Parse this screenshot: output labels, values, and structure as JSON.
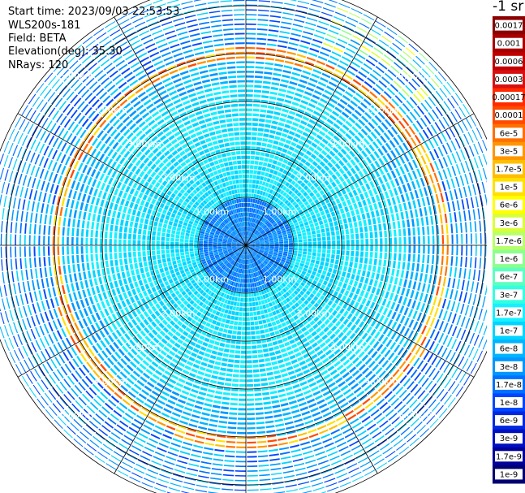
{
  "header": {
    "start_time": "Start time: 2023/09/03 22:53:53",
    "instrument": "WLS200s-181",
    "field": "Field: BETA",
    "elevation": "Elevation(deg): 35.30",
    "nrays": "NRays: 120"
  },
  "unit_label": "-1 sr",
  "chart_data": {
    "type": "heatmap",
    "projection": "polar-ppi",
    "rays": 120,
    "max_range_km": 5.5,
    "ring_ranges_km": [
      1.0,
      2.0,
      3.0,
      4.0,
      5.0
    ],
    "ring_labels": [
      "1.00km",
      "2.00km",
      "3.00km",
      "4.00km",
      "5.00km"
    ],
    "radial_line_step_deg": 30,
    "field": "BETA",
    "elevation_deg": 35.3,
    "colorbar": {
      "labels": [
        "0.0017",
        "0.001",
        "0.0006",
        "0.0003",
        "0.00017",
        "0.0001",
        "6e-5",
        "3e-5",
        "1.7e-5",
        "1e-5",
        "6e-6",
        "3e-6",
        "1.7e-6",
        "1e-6",
        "6e-7",
        "3e-7",
        "1.7e-7",
        "1e-7",
        "6e-8",
        "3e-8",
        "1.7e-8",
        "1e-8",
        "6e-9",
        "3e-9",
        "1.7e-9",
        "1e-9"
      ],
      "colors": [
        "#8b0000",
        "#a80000",
        "#c00000",
        "#d81010",
        "#ff2a00",
        "#ff4a00",
        "#ff7000",
        "#ff9600",
        "#ffbe00",
        "#ffe000",
        "#ffff00",
        "#d8ff3a",
        "#b8ff6a",
        "#8cff8c",
        "#5cffc0",
        "#32ffe0",
        "#18f0ff",
        "#00d4ff",
        "#00b4ff",
        "#0096ff",
        "#0070ff",
        "#0046ff",
        "#0028e0",
        "#0010c0",
        "#00009a",
        "#000070"
      ]
    },
    "layers": [
      {
        "from_km": 0.0,
        "to_km": 1.0,
        "beta": "1.7e-8"
      },
      {
        "from_km": 1.0,
        "to_km": 3.5,
        "beta": "1.7e-7"
      },
      {
        "from_km": 3.5,
        "to_km": 5.5,
        "beta": "3e-8"
      },
      {
        "elevated_layer_km": 4.1,
        "beta": "6e-5"
      }
    ]
  }
}
